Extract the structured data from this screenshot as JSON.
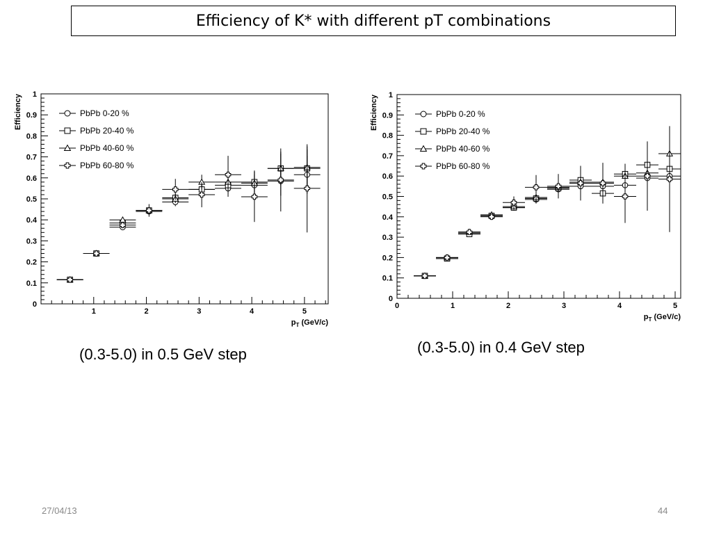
{
  "slide": {
    "title": "Efficiency of K* with different pT combinations",
    "date": "27/04/13",
    "page_number": "44"
  },
  "chart_data": [
    {
      "type": "scatter",
      "caption": "(0.3-5.0) in 0.5 GeV step",
      "ylabel": "Efficiency",
      "xlabel_main": "p",
      "xlabel_sub": "T",
      "xlabel_unit": "(GeV/c)",
      "xlim": [
        0,
        5.45
      ],
      "ylim": [
        0,
        1
      ],
      "xticks": [
        1,
        2,
        3,
        4,
        5
      ],
      "yticks": [
        0,
        0.1,
        0.2,
        0.3,
        0.4,
        0.5,
        0.6,
        0.7,
        0.8,
        0.9,
        1
      ],
      "xtick_labels": [
        "1",
        "2",
        "3",
        "4",
        "5"
      ],
      "ytick_labels": [
        "0",
        "0.1",
        "0.2",
        "0.3",
        "0.4",
        "0.5",
        "0.6",
        "0.7",
        "0.8",
        "0.9",
        "1"
      ],
      "legend_position": "top-left",
      "series": [
        {
          "name": "PbPb 0-20 %",
          "marker": "circle",
          "x": [
            0.55,
            1.05,
            1.55,
            2.05,
            2.55,
            3.05,
            3.55,
            4.05,
            4.55,
            5.05
          ],
          "y": [
            0.115,
            0.24,
            0.365,
            0.44,
            0.485,
            0.545,
            0.55,
            0.565,
            0.585,
            0.615
          ],
          "yerr": [
            0.005,
            0.007,
            0.01,
            0.015,
            0.02,
            0.03,
            0.04,
            0.05,
            0.07,
            0.09
          ],
          "xerr": 0.25
        },
        {
          "name": "PbPb 20-40 %",
          "marker": "square",
          "x": [
            0.55,
            1.05,
            1.55,
            2.05,
            2.55,
            3.05,
            3.55,
            4.05,
            4.55,
            5.05
          ],
          "y": [
            0.115,
            0.24,
            0.385,
            0.445,
            0.505,
            0.545,
            0.565,
            0.58,
            0.645,
            0.645
          ],
          "yerr": [
            0.005,
            0.007,
            0.01,
            0.015,
            0.02,
            0.03,
            0.04,
            0.05,
            0.07,
            0.09
          ],
          "xerr": 0.25
        },
        {
          "name": "PbPb 40-60 %",
          "marker": "triangle",
          "x": [
            0.55,
            1.05,
            1.55,
            2.05,
            2.55,
            3.05,
            3.55,
            4.05,
            4.55,
            5.05
          ],
          "y": [
            0.115,
            0.24,
            0.4,
            0.445,
            0.5,
            0.58,
            0.58,
            0.575,
            0.645,
            0.65
          ],
          "yerr": [
            0.005,
            0.007,
            0.01,
            0.015,
            0.02,
            0.035,
            0.045,
            0.06,
            0.08,
            0.1
          ],
          "xerr": 0.25
        },
        {
          "name": "PbPb 60-80 %",
          "marker": "cross",
          "x": [
            0.55,
            1.05,
            1.55,
            2.05,
            2.55,
            3.05,
            3.55,
            4.05,
            4.55,
            5.05
          ],
          "y": [
            0.115,
            0.24,
            0.375,
            0.445,
            0.545,
            0.52,
            0.615,
            0.51,
            0.59,
            0.55
          ],
          "yerr": [
            0.005,
            0.01,
            0.015,
            0.03,
            0.05,
            0.06,
            0.09,
            0.12,
            0.15,
            0.21
          ],
          "xerr": 0.25
        }
      ]
    },
    {
      "type": "scatter",
      "caption": "(0.3-5.0) in 0.4 GeV step",
      "ylabel": "Efficiency",
      "xlabel_main": "p",
      "xlabel_sub": "T",
      "xlabel_unit": "(GeV/c)",
      "xlim": [
        0,
        5.1
      ],
      "ylim": [
        0,
        1
      ],
      "xticks": [
        0,
        1,
        2,
        3,
        4,
        5
      ],
      "yticks": [
        0,
        0.1,
        0.2,
        0.3,
        0.4,
        0.5,
        0.6,
        0.7,
        0.8,
        0.9,
        1
      ],
      "xtick_labels": [
        "0",
        "1",
        "2",
        "3",
        "4",
        "5"
      ],
      "ytick_labels": [
        "0",
        "0.1",
        "0.2",
        "0.3",
        "0.4",
        "0.5",
        "0.6",
        "0.7",
        "0.8",
        "0.9",
        "1"
      ],
      "legend_position": "top-left",
      "series": [
        {
          "name": "PbPb 0-20 %",
          "marker": "circle",
          "x": [
            0.5,
            0.9,
            1.3,
            1.7,
            2.1,
            2.5,
            2.9,
            3.3,
            3.7,
            4.1,
            4.5,
            4.9
          ],
          "y": [
            0.11,
            0.195,
            0.32,
            0.405,
            0.445,
            0.485,
            0.535,
            0.55,
            0.55,
            0.555,
            0.59,
            0.6
          ],
          "yerr": [
            0.005,
            0.007,
            0.008,
            0.01,
            0.015,
            0.02,
            0.025,
            0.03,
            0.04,
            0.05,
            0.07,
            0.09
          ],
          "xerr": 0.2
        },
        {
          "name": "PbPb 20-40 %",
          "marker": "square",
          "x": [
            0.5,
            0.9,
            1.3,
            1.7,
            2.1,
            2.5,
            2.9,
            3.3,
            3.7,
            4.1,
            4.5,
            4.9
          ],
          "y": [
            0.11,
            0.195,
            0.315,
            0.405,
            0.445,
            0.49,
            0.54,
            0.58,
            0.515,
            0.61,
            0.655,
            0.635
          ],
          "yerr": [
            0.005,
            0.007,
            0.008,
            0.01,
            0.015,
            0.02,
            0.025,
            0.03,
            0.04,
            0.05,
            0.07,
            0.09
          ],
          "xerr": 0.2
        },
        {
          "name": "PbPb 40-60 %",
          "marker": "triangle",
          "x": [
            0.5,
            0.9,
            1.3,
            1.7,
            2.1,
            2.5,
            2.9,
            3.3,
            3.7,
            4.1,
            4.5,
            4.9
          ],
          "y": [
            0.11,
            0.2,
            0.325,
            0.41,
            0.45,
            0.495,
            0.545,
            0.57,
            0.57,
            0.6,
            0.615,
            0.71
          ],
          "yerr": [
            0.005,
            0.007,
            0.008,
            0.01,
            0.015,
            0.02,
            0.03,
            0.04,
            0.05,
            0.06,
            0.08,
            0.13
          ],
          "xerr": 0.2
        },
        {
          "name": "PbPb 60-80 %",
          "marker": "cross",
          "x": [
            0.5,
            0.9,
            1.3,
            1.7,
            2.1,
            2.5,
            2.9,
            3.3,
            3.7,
            4.1,
            4.5,
            4.9
          ],
          "y": [
            0.11,
            0.2,
            0.325,
            0.4,
            0.47,
            0.545,
            0.55,
            0.565,
            0.565,
            0.5,
            0.6,
            0.585
          ],
          "yerr": [
            0.005,
            0.008,
            0.01,
            0.015,
            0.03,
            0.06,
            0.06,
            0.085,
            0.1,
            0.13,
            0.17,
            0.26
          ],
          "xerr": 0.2
        }
      ]
    }
  ]
}
